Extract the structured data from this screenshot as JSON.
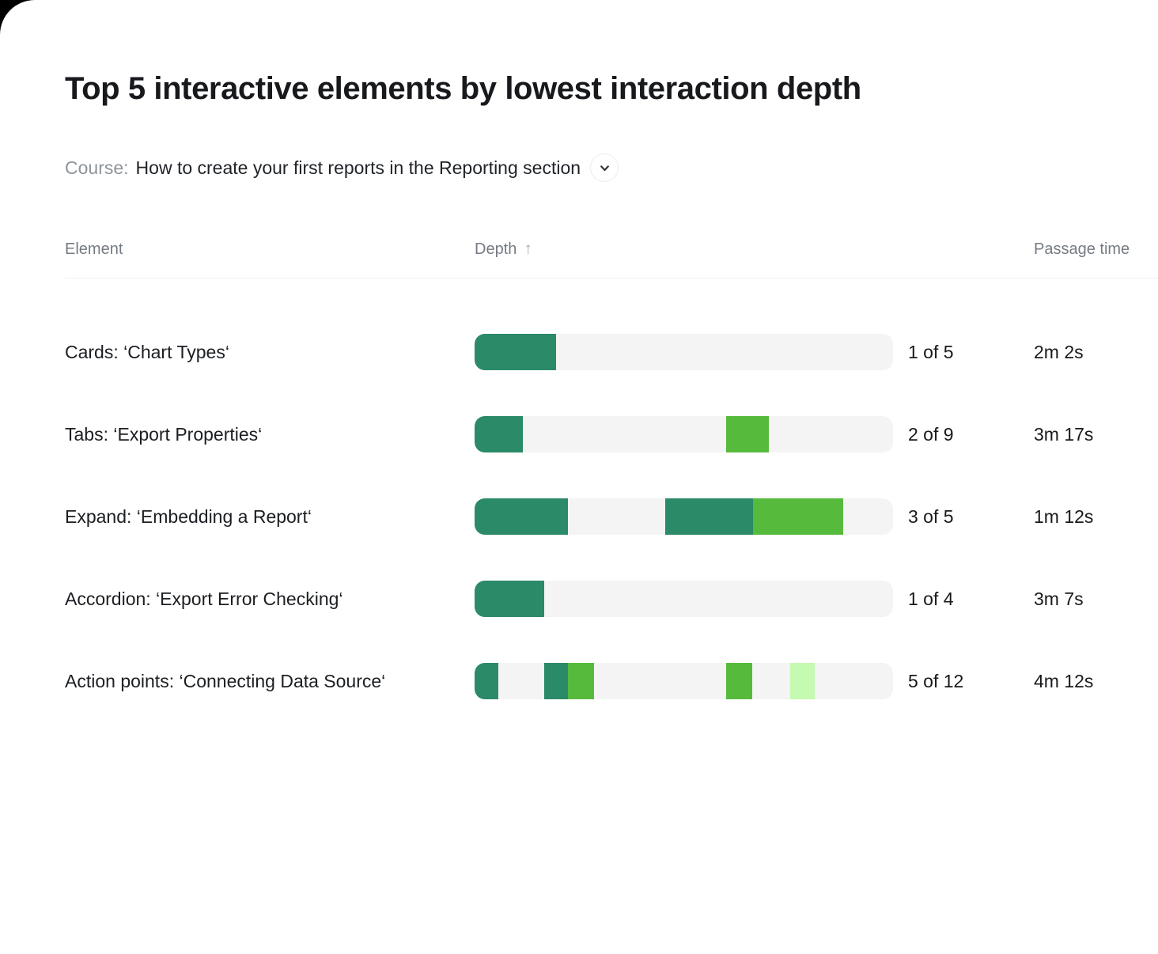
{
  "page": {
    "title": "Top 5 interactive elements by lowest interaction depth"
  },
  "course": {
    "label": "Course:",
    "value": "How to create your first reports in the Reporting section"
  },
  "table": {
    "columns": {
      "element": "Element",
      "depth": "Depth",
      "passage_time": "Passage time"
    },
    "sort": {
      "column": "depth",
      "direction": "asc",
      "arrow_glyph": "↑"
    },
    "rows": [
      {
        "element": "Cards: ‘Chart Types‘",
        "depth_label": "1 of 5",
        "passage_time": "2m 2s",
        "segments": [
          {
            "start": 0,
            "width": 0.195,
            "color": "dark"
          }
        ]
      },
      {
        "element": "Tabs: ‘Export Properties‘",
        "depth_label": "2 of 9",
        "passage_time": "3m 17s",
        "segments": [
          {
            "start": 0,
            "width": 0.115,
            "color": "dark"
          },
          {
            "start": 0.602,
            "width": 0.102,
            "color": "mid"
          }
        ]
      },
      {
        "element": "Expand: ‘Embedding a Report‘",
        "depth_label": "3 of 5",
        "passage_time": "1m 12s",
        "segments": [
          {
            "start": 0,
            "width": 0.224,
            "color": "dark"
          },
          {
            "start": 0.455,
            "width": 0.21,
            "color": "dark"
          },
          {
            "start": 0.665,
            "width": 0.216,
            "color": "mid"
          }
        ]
      },
      {
        "element": "Accordion: ‘Export Error Checking‘",
        "depth_label": "1 of 4",
        "passage_time": "3m 7s",
        "segments": [
          {
            "start": 0,
            "width": 0.167,
            "color": "dark"
          }
        ]
      },
      {
        "element": "Action points: ‘Connecting Data Source‘",
        "depth_label": "5 of 12",
        "passage_time": "4m 12s",
        "segments": [
          {
            "start": 0,
            "width": 0.057,
            "color": "dark"
          },
          {
            "start": 0.167,
            "width": 0.057,
            "color": "dark"
          },
          {
            "start": 0.224,
            "width": 0.061,
            "color": "mid"
          },
          {
            "start": 0.602,
            "width": 0.061,
            "color": "mid"
          },
          {
            "start": 0.754,
            "width": 0.059,
            "color": "pale"
          }
        ]
      }
    ]
  },
  "colors": {
    "dark": "#2b8a67",
    "mid": "#56bb3d",
    "pale": "#c5fbb0",
    "track": "#f3f4f3"
  }
}
